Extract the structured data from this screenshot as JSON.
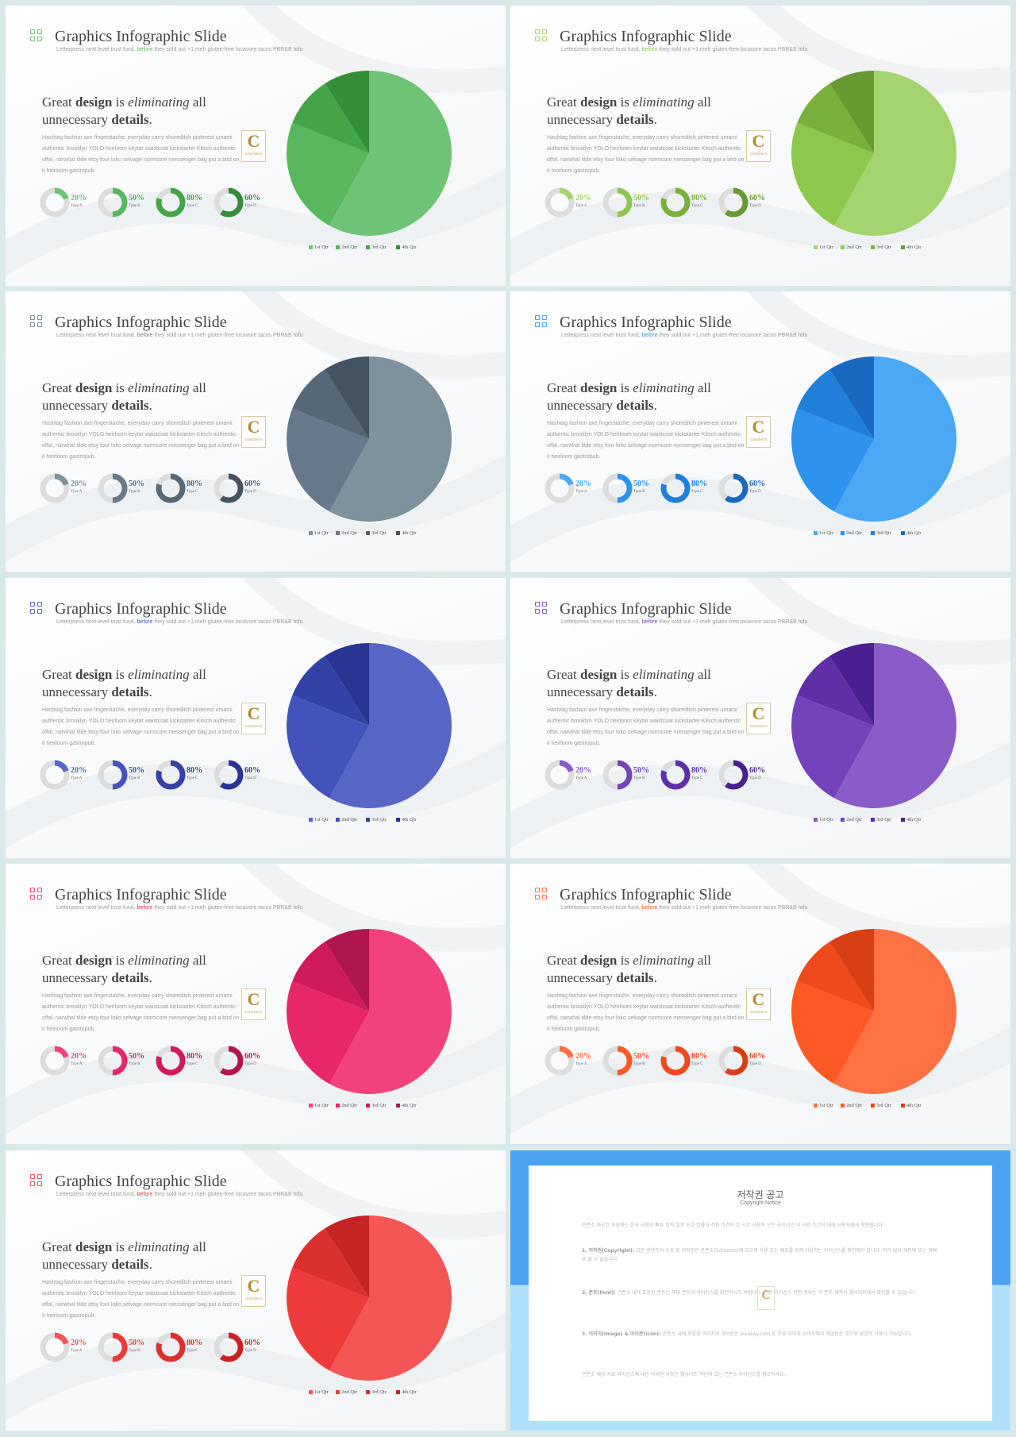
{
  "slide": {
    "title": "Graphics Infographic Slide",
    "subtitle_before": "Letterpress next level trust fund, ",
    "subtitle_highlight": "before",
    "subtitle_after": " they sold out +1 meh gluten-free locavore tacos PBR&B tofu",
    "headline": {
      "w1": "Great ",
      "w2": "design",
      "w3": " is ",
      "w4": "eliminating",
      "w5": " all unnecessary ",
      "w6": "details",
      "w7": "."
    },
    "body": "Hashtag fashion axe fingerstache, everyday carry shoreditch pinterest umami authentic brooklyn YOLO heirloom keytar waistcoat kickstarter Kitsch authentic offal, narwhal tilde etsy four loko selvage normcore messenger bag put a bird on it heirloom gastropub.",
    "badge_letter": "C",
    "badge_text": "CONTENTS",
    "donuts": [
      {
        "percent": 20,
        "label": "20%",
        "type": "Type A"
      },
      {
        "percent": 50,
        "label": "50%",
        "type": "Type B"
      },
      {
        "percent": 80,
        "label": "80%",
        "type": "Type C"
      },
      {
        "percent": 60,
        "label": "60%",
        "type": "Type D"
      }
    ]
  },
  "chart_data": {
    "type": "pie",
    "categories": [
      "1st Qtr",
      "2nd Qtr",
      "3rd Qtr",
      "4th Qtr"
    ],
    "values": [
      58,
      23,
      10,
      9
    ],
    "legend": "bottom"
  },
  "themes": [
    {
      "name": "green",
      "colors": [
        "#6ec474",
        "#58b85e",
        "#43a548",
        "#338e37"
      ],
      "ring": "#dddddd"
    },
    {
      "name": "lime",
      "colors": [
        "#a3d46f",
        "#8cc84c",
        "#79b13c",
        "#679a30"
      ],
      "ring": "#dddddd"
    },
    {
      "name": "slate",
      "colors": [
        "#7e919c",
        "#67798a",
        "#566775",
        "#445360"
      ],
      "ring": "#dddddd"
    },
    {
      "name": "blue",
      "colors": [
        "#4aa8f5",
        "#2d93ec",
        "#1f7fd9",
        "#1a69c0"
      ],
      "ring": "#dddddd"
    },
    {
      "name": "indigo",
      "colors": [
        "#5866c8",
        "#4453bb",
        "#3442a8",
        "#283593"
      ],
      "ring": "#dddddd"
    },
    {
      "name": "purple",
      "colors": [
        "#8a5cc9",
        "#7443bb",
        "#5f2fa8",
        "#4a2090"
      ],
      "ring": "#dddddd"
    },
    {
      "name": "pink",
      "colors": [
        "#f2427d",
        "#e8266a",
        "#d01a5c",
        "#b0154f"
      ],
      "ring": "#dddddd"
    },
    {
      "name": "orange",
      "colors": [
        "#ff7043",
        "#ff5a26",
        "#f0491b",
        "#d93f14"
      ],
      "ring": "#dddddd"
    },
    {
      "name": "red",
      "colors": [
        "#f45555",
        "#ee3a3a",
        "#dc2f2f",
        "#c62424"
      ],
      "ring": "#dddddd"
    }
  ],
  "notice": {
    "title": "저작권 공고",
    "subtitle": "Copyright Notice",
    "p1": "큰폰소 제공된 자료에는 한국 사회의 빠른 법적 설정 보호 법률이 적용 조건이 있 시로 사용자 모든 라이선스 이 사용 조건이 대해 사용자에게 적용됩니다.",
    "p2_head": "1. 저작권(Copyright): ",
    "p2": "모든 컨텐츠의 소유 및 저작권은 큰폰소(Contents)에 있으며 사용 또는 배포를 위해 사용자는 라이선스를 확인해야 합니다. 허가 없이 재판매 또는 재배포 할 수 없습니다.",
    "p3_head": "2. 폰트(Font): ",
    "p3": "큰폰소 내에 포함된 폰트는 해당 폰트의 라이선스를 확인하시기 바랍니다. 폰트 라이선스 관련 정보는 각 폰트 제작사 웹사이트에서 확인할 수 있습니다.",
    "p4_head": "3. 이미지(Image) & 아이콘(Icon): ",
    "p4": "큰폰소 내에 포함된 이미지와 아이콘은 pixabay.com 등 무료 이미지 사이트에서 제공받은 것으로 상업적 이용이 가능합니다.",
    "p5": "큰폰소 제공 자료 라이선스에 대한 자세한 사항은 웹사이트 하단에 있는 큰폰소 라이선스를 참고하세요."
  }
}
